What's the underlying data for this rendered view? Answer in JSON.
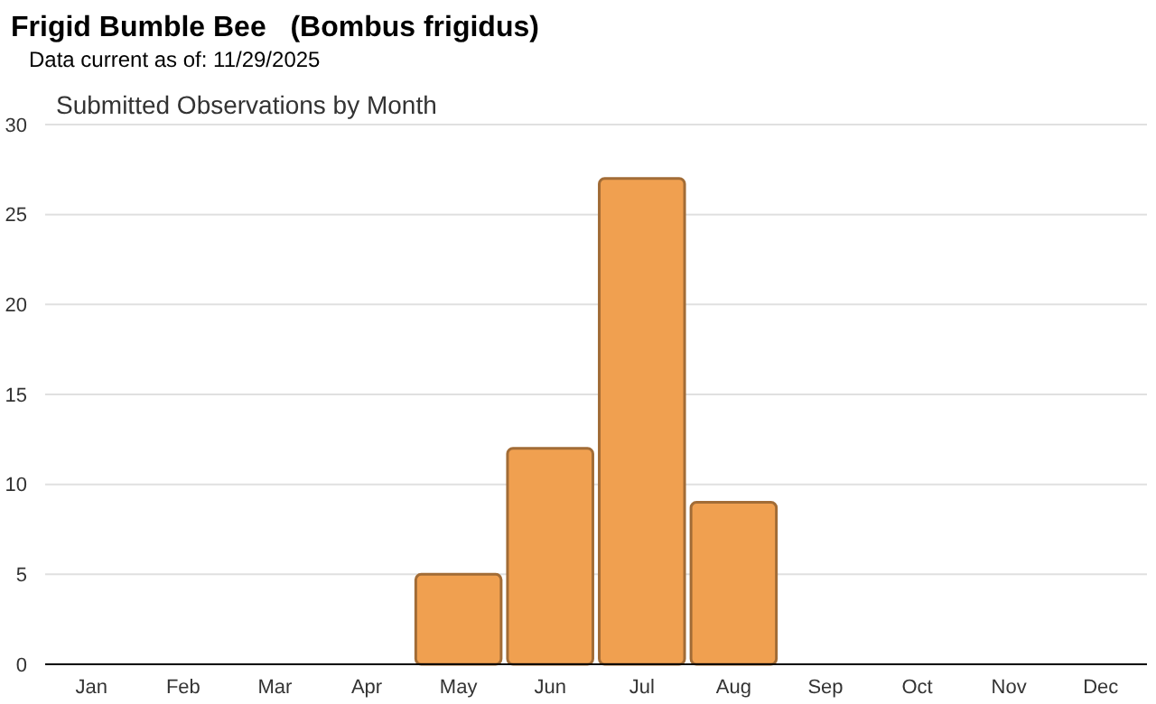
{
  "chart_data": {
    "type": "bar",
    "title": "Frigid Bumble Bee   (Bombus frigidus)",
    "subtitle": "Data current as of: 11/29/2025",
    "annotations": [
      "Submitted Observations by Month"
    ],
    "categories": [
      "Jan",
      "Feb",
      "Mar",
      "Apr",
      "May",
      "Jun",
      "Jul",
      "Aug",
      "Sep",
      "Oct",
      "Nov",
      "Dec"
    ],
    "values": [
      0,
      0,
      0,
      0,
      5,
      12,
      27,
      9,
      0,
      0,
      0,
      0
    ],
    "color": "#f0a050",
    "ylim": [
      0,
      30
    ],
    "yticks": [
      0,
      5,
      10,
      15,
      20,
      25,
      30
    ],
    "grid": "y"
  }
}
